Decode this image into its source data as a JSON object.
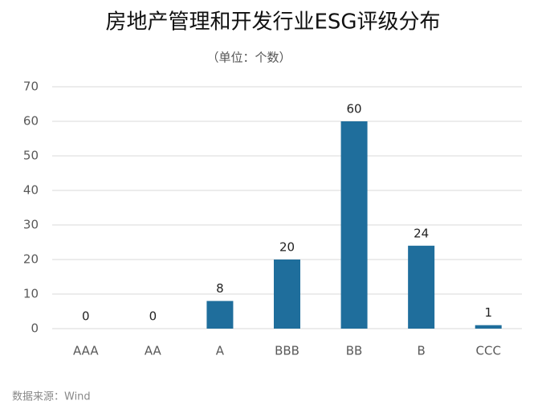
{
  "chart_data": {
    "type": "bar",
    "title": "房地产管理和开发行业ESG评级分布",
    "subtitle": "（单位：个数）",
    "categories": [
      "AAA",
      "AA",
      "A",
      "BBB",
      "BB",
      "B",
      "CCC"
    ],
    "values": [
      0,
      0,
      8,
      20,
      60,
      24,
      1
    ],
    "color": "#1f6e9c",
    "ylim": [
      0,
      70
    ],
    "yticks": [
      0,
      10,
      20,
      30,
      40,
      50,
      60,
      70
    ],
    "grid": true,
    "source": "数据来源：Wind"
  }
}
